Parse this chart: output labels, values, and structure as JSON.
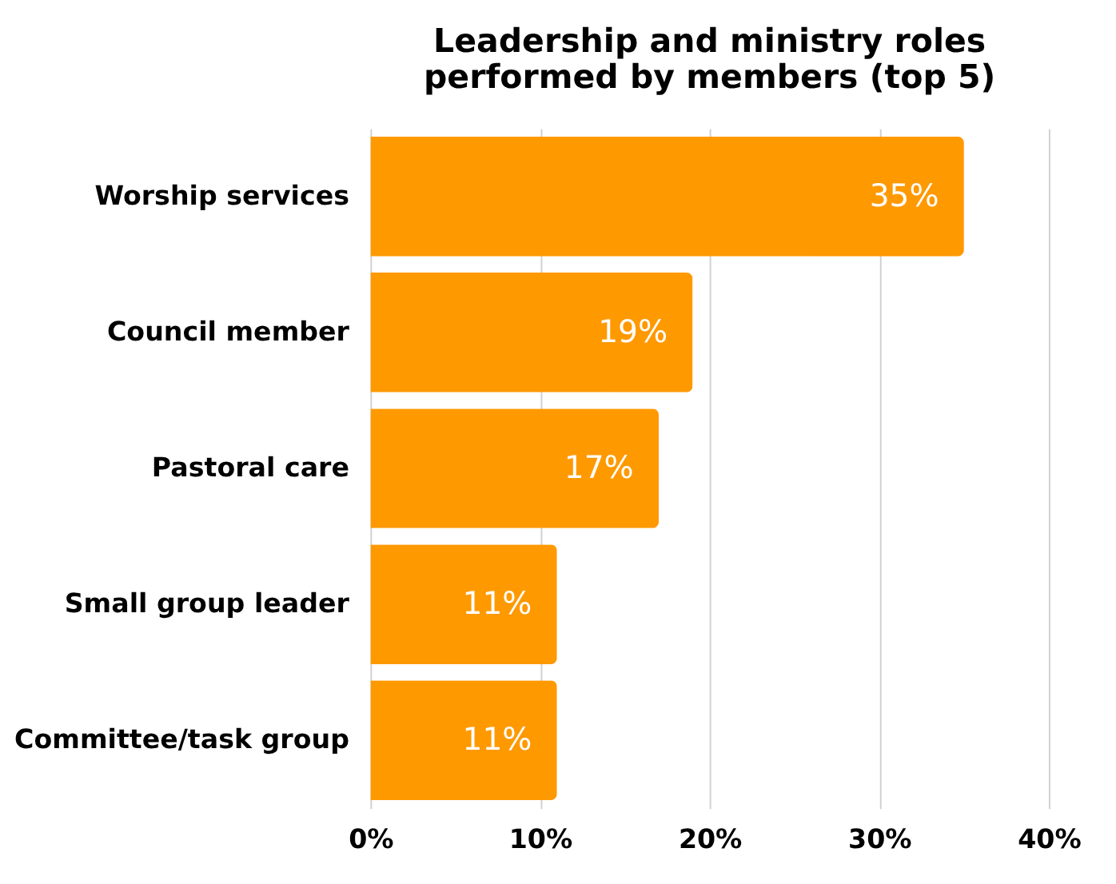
{
  "chart_data": {
    "type": "bar",
    "orientation": "horizontal",
    "title": "Leadership and ministry roles performed by members (top 5)",
    "categories": [
      "Worship services",
      "Council member",
      "Pastoral care",
      "Small group leader",
      "Committee/task group"
    ],
    "values": [
      35,
      19,
      17,
      11,
      11
    ],
    "value_labels": [
      "35%",
      "19%",
      "17%",
      "11%",
      "11%"
    ],
    "color": "#ff9900",
    "xlim": [
      0,
      40
    ],
    "xticks": [
      {
        "value": 0,
        "label": "0%"
      },
      {
        "value": 10,
        "label": "10%"
      },
      {
        "value": 20,
        "label": "20%"
      },
      {
        "value": 30,
        "label": "30%"
      },
      {
        "value": 40,
        "label": "40%"
      }
    ],
    "grid": "x"
  }
}
